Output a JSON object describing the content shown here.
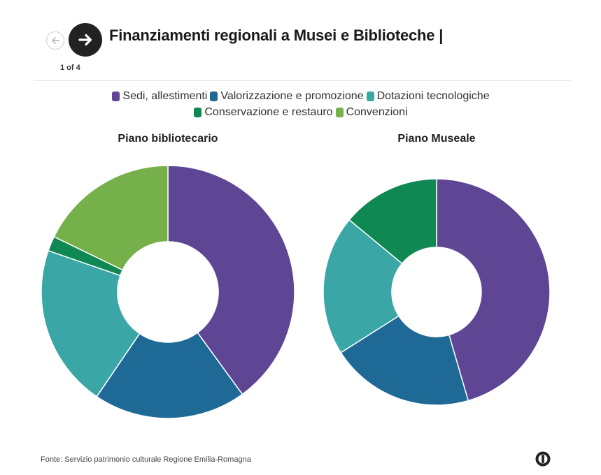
{
  "header": {
    "title": "Finanziamenti regionali a Musei e Biblioteche |",
    "pager": "1 of 4"
  },
  "legend": [
    {
      "label": "Sedi, allestimenti",
      "color": "#5e4694"
    },
    {
      "label": "Valorizzazione e promozione",
      "color": "#1f6996"
    },
    {
      "label": "Dotazioni tecnologiche",
      "color": "#3aa6a6"
    },
    {
      "label": "Conservazione e restauro",
      "color": "#108853"
    },
    {
      "label": "Convenzioni",
      "color": "#76b04a"
    }
  ],
  "footer": {
    "source": "Fonte: Servizio patrimonio culturale Regione Emilia-Romagna"
  },
  "icons": {
    "prev": "arrow-left-icon",
    "next": "arrow-right-icon",
    "logo": "datawrapper-logo-icon"
  },
  "chart_data": [
    {
      "type": "pie",
      "title": "Piano bibliotecario",
      "categories": [
        "Sedi, allestimenti",
        "Valorizzazione e promozione",
        "Dotazioni tecnologiche",
        "Conservazione e restauro",
        "Convenzioni"
      ],
      "values": [
        40.0,
        19.5,
        20.8,
        1.9,
        17.8
      ],
      "unit": "%"
    },
    {
      "type": "pie",
      "title": "Piano Museale",
      "categories": [
        "Sedi, allestimenti",
        "Valorizzazione e promozione",
        "Dotazioni tecnologiche",
        "Conservazione e restauro"
      ],
      "values": [
        45.5,
        20.5,
        20.0,
        14.0
      ],
      "unit": "%"
    }
  ]
}
